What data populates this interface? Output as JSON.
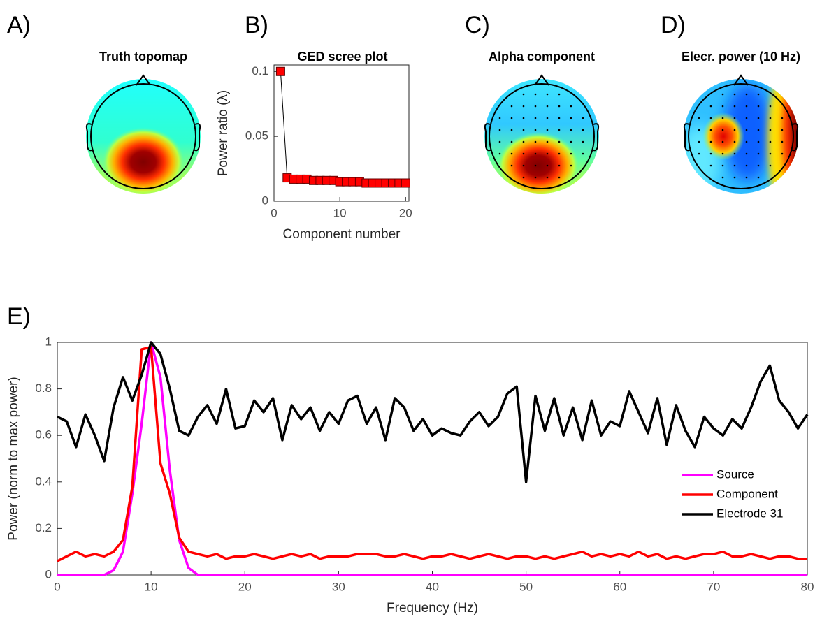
{
  "chart_data": [
    {
      "type": "topomap",
      "label": "A)",
      "title": "Truth topomap"
    },
    {
      "type": "scree",
      "label": "B)",
      "title": "GED scree plot",
      "xlabel": "Component number",
      "ylabel": "Power ratio (λ)",
      "x": [
        1,
        2,
        3,
        4,
        5,
        6,
        7,
        8,
        9,
        10,
        11,
        12,
        13,
        14,
        15,
        16,
        17,
        18,
        19,
        20
      ],
      "values": [
        0.1,
        0.018,
        0.017,
        0.017,
        0.017,
        0.016,
        0.016,
        0.016,
        0.016,
        0.015,
        0.015,
        0.015,
        0.015,
        0.014,
        0.014,
        0.014,
        0.014,
        0.014,
        0.014,
        0.014
      ],
      "color": "#ff0000",
      "xlim": [
        0,
        20.5
      ],
      "xticks": [
        0,
        10,
        20
      ],
      "ylim": [
        0,
        0.105
      ],
      "yticks": [
        0,
        0.05,
        0.1
      ]
    },
    {
      "type": "topomap",
      "label": "C)",
      "title": "Alpha component"
    },
    {
      "type": "topomap",
      "label": "D)",
      "title": "Elecr. power (10 Hz)"
    },
    {
      "type": "line",
      "label": "E)",
      "xlabel": "Frequency (Hz)",
      "ylabel": "Power (norm to max power)",
      "x": [
        0,
        1,
        2,
        3,
        4,
        5,
        6,
        7,
        8,
        9,
        10,
        11,
        12,
        13,
        14,
        15,
        16,
        17,
        18,
        19,
        20,
        21,
        22,
        23,
        24,
        25,
        26,
        27,
        28,
        29,
        30,
        31,
        32,
        33,
        34,
        35,
        36,
        37,
        38,
        39,
        40,
        41,
        42,
        43,
        44,
        45,
        46,
        47,
        48,
        49,
        50,
        51,
        52,
        53,
        54,
        55,
        56,
        57,
        58,
        59,
        60,
        61,
        62,
        63,
        64,
        65,
        66,
        67,
        68,
        69,
        70,
        71,
        72,
        73,
        74,
        75,
        76,
        77,
        78,
        79,
        80
      ],
      "series": [
        {
          "name": "Source",
          "color": "#ff00ff",
          "values": [
            0,
            0,
            0,
            0,
            0,
            0,
            0.02,
            0.1,
            0.35,
            0.65,
            1.0,
            0.85,
            0.45,
            0.15,
            0.03,
            0,
            0,
            0,
            0,
            0,
            0,
            0,
            0,
            0,
            0,
            0,
            0,
            0,
            0,
            0,
            0,
            0,
            0,
            0,
            0,
            0,
            0,
            0,
            0,
            0,
            0,
            0,
            0,
            0,
            0,
            0,
            0,
            0,
            0,
            0,
            0,
            0,
            0,
            0,
            0,
            0,
            0,
            0,
            0,
            0,
            0,
            0,
            0,
            0,
            0,
            0,
            0,
            0,
            0,
            0,
            0,
            0,
            0,
            0,
            0,
            0,
            0,
            0,
            0,
            0,
            0
          ]
        },
        {
          "name": "Component",
          "color": "#ff0000",
          "values": [
            0.06,
            0.08,
            0.1,
            0.08,
            0.09,
            0.08,
            0.1,
            0.15,
            0.38,
            0.97,
            0.98,
            0.48,
            0.35,
            0.16,
            0.1,
            0.09,
            0.08,
            0.09,
            0.07,
            0.08,
            0.08,
            0.09,
            0.08,
            0.07,
            0.08,
            0.09,
            0.08,
            0.09,
            0.07,
            0.08,
            0.08,
            0.08,
            0.09,
            0.09,
            0.09,
            0.08,
            0.08,
            0.09,
            0.08,
            0.07,
            0.08,
            0.08,
            0.09,
            0.08,
            0.07,
            0.08,
            0.09,
            0.08,
            0.07,
            0.08,
            0.08,
            0.07,
            0.08,
            0.07,
            0.08,
            0.09,
            0.1,
            0.08,
            0.09,
            0.08,
            0.09,
            0.08,
            0.1,
            0.08,
            0.09,
            0.07,
            0.08,
            0.07,
            0.08,
            0.09,
            0.09,
            0.1,
            0.08,
            0.08,
            0.09,
            0.08,
            0.07,
            0.08,
            0.08,
            0.07,
            0.07
          ]
        },
        {
          "name": "Electrode 31",
          "color": "#000000",
          "values": [
            0.68,
            0.66,
            0.55,
            0.69,
            0.6,
            0.49,
            0.72,
            0.85,
            0.75,
            0.86,
            1.0,
            0.95,
            0.8,
            0.62,
            0.6,
            0.68,
            0.73,
            0.65,
            0.8,
            0.63,
            0.64,
            0.75,
            0.7,
            0.76,
            0.58,
            0.73,
            0.67,
            0.72,
            0.62,
            0.7,
            0.65,
            0.75,
            0.77,
            0.65,
            0.72,
            0.58,
            0.76,
            0.72,
            0.62,
            0.67,
            0.6,
            0.63,
            0.61,
            0.6,
            0.66,
            0.7,
            0.64,
            0.68,
            0.78,
            0.81,
            0.4,
            0.77,
            0.62,
            0.76,
            0.6,
            0.72,
            0.58,
            0.75,
            0.6,
            0.66,
            0.64,
            0.79,
            0.7,
            0.61,
            0.76,
            0.56,
            0.73,
            0.62,
            0.55,
            0.68,
            0.63,
            0.6,
            0.67,
            0.63,
            0.72,
            0.83,
            0.9,
            0.75,
            0.7,
            0.63,
            0.69
          ]
        }
      ],
      "xlim": [
        0,
        80
      ],
      "xticks": [
        0,
        10,
        20,
        30,
        40,
        50,
        60,
        70,
        80
      ],
      "ylim": [
        0,
        1
      ],
      "yticks": [
        0,
        0.2,
        0.4,
        0.6,
        0.8,
        1
      ],
      "legend": "right"
    }
  ]
}
